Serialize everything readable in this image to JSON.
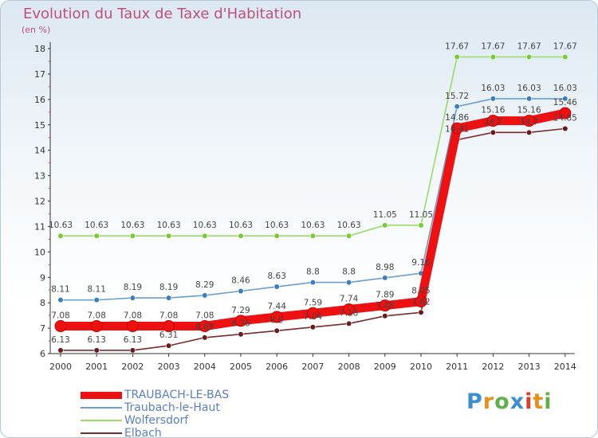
{
  "header": {
    "title": "Evolution du Taux de Taxe d'Habitation",
    "subtitle": "(en %)"
  },
  "brand": {
    "letters": [
      "P",
      "r",
      "o",
      "x",
      "i",
      "t",
      "i"
    ],
    "colors": [
      "#3a8fd0",
      "#e8901c",
      "#5fb04a",
      "#3a8fd0",
      "#e23a2a",
      "#e8901c",
      "#5fb04a"
    ]
  },
  "chart_data": {
    "type": "line",
    "title": "Evolution du Taux de Taxe d'Habitation",
    "ylabel": "(en %)",
    "xlabel": "",
    "categories": [
      "2000",
      "2001",
      "2002",
      "2003",
      "2004",
      "2005",
      "2006",
      "2007",
      "2008",
      "2009",
      "2010",
      "2011",
      "2012",
      "2013",
      "2014"
    ],
    "ylim": [
      6,
      18
    ],
    "yticks": [
      6,
      7,
      8,
      9,
      10,
      11,
      12,
      13,
      14,
      15,
      16,
      17,
      18
    ],
    "grid": false,
    "legend_position": "bottom-left",
    "series": [
      {
        "name": "TRAUBACH-LE-BAS",
        "color": "#ee1111",
        "point_color": "#ee1111",
        "emphasis": true,
        "values": [
          7.08,
          7.08,
          7.08,
          7.08,
          7.08,
          7.29,
          7.44,
          7.59,
          7.74,
          7.89,
          8.05,
          14.86,
          15.16,
          15.16,
          15.46
        ],
        "labels": [
          "7.08",
          "7.08",
          "7.08",
          "7.08",
          "7.08",
          "7.29",
          "7.44",
          "7.59",
          "7.74",
          "7.89",
          "8.05",
          "14.86",
          "15.16",
          "15.16",
          "15.46"
        ]
      },
      {
        "name": "Traubach-le-Haut",
        "color": "#6a9ed0",
        "point_color": "#3a7ec0",
        "emphasis": false,
        "values": [
          8.11,
          8.11,
          8.19,
          8.19,
          8.29,
          8.46,
          8.63,
          8.8,
          8.8,
          8.98,
          9.16,
          15.72,
          16.03,
          16.03,
          16.03
        ],
        "labels": [
          "8.11",
          "8.11",
          "8.19",
          "8.19",
          "8.29",
          "8.46",
          "8.63",
          "8.8",
          "8.8",
          "8.98",
          "9.16",
          "15.72",
          "16.03",
          "16.03",
          "16.03"
        ]
      },
      {
        "name": "Wolfersdorf",
        "color": "#99dd66",
        "point_color": "#77cc33",
        "emphasis": false,
        "values": [
          10.63,
          10.63,
          10.63,
          10.63,
          10.63,
          10.63,
          10.63,
          10.63,
          10.63,
          11.05,
          11.05,
          17.67,
          17.67,
          17.67,
          17.67
        ],
        "labels": [
          "10.63",
          "10.63",
          "10.63",
          "10.63",
          "10.63",
          "10.63",
          "10.63",
          "10.63",
          "10.63",
          "11.05",
          "11.05",
          "17.67",
          "17.67",
          "17.67",
          "17.67"
        ]
      },
      {
        "name": "Elbach",
        "color": "#7a2a2a",
        "point_color": "#6a1a1a",
        "emphasis": false,
        "values": [
          6.13,
          6.13,
          6.13,
          6.31,
          6.63,
          6.76,
          6.9,
          7.04,
          7.18,
          7.48,
          7.62,
          14.41,
          14.7,
          14.7,
          14.85
        ],
        "labels": [
          "6.13",
          "6.13",
          "6.13",
          "6.31",
          "6.63",
          "6.76",
          "6.9",
          "7.04",
          "7.18",
          "7.48",
          "7.62",
          "14.41",
          "14.7",
          "14.7",
          "14.85"
        ]
      }
    ]
  }
}
